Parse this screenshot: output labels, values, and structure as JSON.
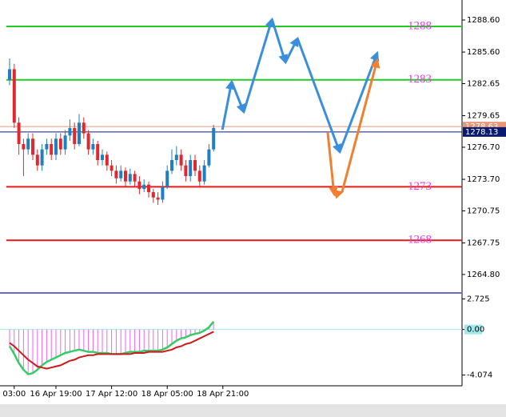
{
  "chart_data": [
    {
      "type": "candlestick",
      "ylim": [
        1263.15,
        1290.47
      ],
      "yticks": [
        {
          "value": 1288.6,
          "label": "1288.60"
        },
        {
          "value": 1285.6,
          "label": "1285.60"
        },
        1282.65,
        1279.65,
        {
          "value": 1276.7,
          "label": "1276.70"
        },
        {
          "value": 1273.7,
          "label": "1273.70"
        },
        1270.75,
        1267.75,
        {
          "value": 1264.8,
          "label": "1264.80"
        }
      ],
      "bull_color": "#1f7fc0",
      "bear_color": "#e0282e",
      "candles": [
        [
          1283,
          1285,
          1282.5,
          1284
        ],
        [
          1284,
          1284.5,
          1278.5,
          1279
        ],
        [
          1279,
          1279.5,
          1276,
          1277
        ],
        [
          1277,
          1277.5,
          1274,
          1276.5
        ],
        [
          1276.5,
          1278,
          1276,
          1277.5
        ],
        [
          1277.5,
          1278,
          1275.5,
          1276
        ],
        [
          1276,
          1276.5,
          1274.5,
          1275
        ],
        [
          1275,
          1277,
          1274.5,
          1276.5
        ],
        [
          1276.5,
          1277.5,
          1276,
          1277
        ],
        [
          1277,
          1277.5,
          1275.5,
          1276
        ],
        [
          1276,
          1278,
          1275.5,
          1277.5
        ],
        [
          1277.5,
          1278,
          1276,
          1276.5
        ],
        [
          1276.5,
          1278.3,
          1276,
          1277.8
        ],
        [
          1277.8,
          1279.3,
          1277.3,
          1278.5
        ],
        [
          1278.5,
          1279,
          1276.5,
          1277
        ],
        [
          1277,
          1279.8,
          1276.8,
          1279
        ],
        [
          1279,
          1279.5,
          1277.5,
          1278
        ],
        [
          1278,
          1278.3,
          1276,
          1276.5
        ],
        [
          1276.5,
          1277.5,
          1276,
          1277
        ],
        [
          1277,
          1277.3,
          1275,
          1275.5
        ],
        [
          1275.5,
          1276.5,
          1275,
          1276
        ],
        [
          1276,
          1276.3,
          1274.5,
          1275
        ],
        [
          1275,
          1275.5,
          1274,
          1274.5
        ],
        [
          1274.5,
          1275,
          1273.3,
          1273.8
        ],
        [
          1273.8,
          1275,
          1273.5,
          1274.5
        ],
        [
          1274.5,
          1274.8,
          1273,
          1273.5
        ],
        [
          1273.5,
          1274.7,
          1273.2,
          1274.2
        ],
        [
          1274.2,
          1274.5,
          1273,
          1273.5
        ],
        [
          1273.5,
          1274,
          1272.3,
          1272.8
        ],
        [
          1272.8,
          1273.7,
          1272.5,
          1273.2
        ],
        [
          1273.2,
          1273.5,
          1272,
          1272.5
        ],
        [
          1272.5,
          1272.8,
          1271.5,
          1272
        ],
        [
          1272,
          1272.5,
          1271.3,
          1271.8
        ],
        [
          1271.8,
          1273.5,
          1271.5,
          1273
        ],
        [
          1273,
          1275,
          1272.8,
          1274.5
        ],
        [
          1274.5,
          1276.5,
          1274.2,
          1275.5
        ],
        [
          1275.5,
          1276.8,
          1275,
          1276
        ],
        [
          1276,
          1276.5,
          1274.5,
          1275
        ],
        [
          1275,
          1275.5,
          1273.5,
          1274
        ],
        [
          1274,
          1276,
          1273.5,
          1275.5
        ],
        [
          1275.5,
          1276,
          1274,
          1274.5
        ],
        [
          1274.5,
          1275,
          1273,
          1273.5
        ],
        [
          1273.5,
          1275.5,
          1273.2,
          1275
        ],
        [
          1275,
          1277,
          1274.8,
          1276.5
        ],
        [
          1276.5,
          1278.8,
          1276.3,
          1278.5
        ]
      ],
      "levels": [
        {
          "value": 1288,
          "label": "1288",
          "color": "#22cc22"
        },
        {
          "value": 1283,
          "label": "1283",
          "color": "#22cc22"
        },
        {
          "value": 1273,
          "label": "1273",
          "color": "#e41b1b"
        },
        {
          "value": 1268,
          "label": "1268",
          "color": "#e41b1b"
        }
      ],
      "level_label_color": "#e040e0",
      "price_lines": [
        {
          "value": 1278.63,
          "color": "#e8967a"
        },
        {
          "value": 1278.13,
          "color": "#0a1a6e"
        }
      ],
      "projections": [
        {
          "color": "#3a8fdc",
          "x": [
            45.9,
            47.9,
            50.5,
            56.6,
            59.5,
            62.1,
            71.2,
            79.3
          ],
          "y": [
            1278.34,
            1282.84,
            1279.99,
            1288.67,
            1284.63,
            1286.88,
            1276.25,
            1285.53
          ]
        },
        {
          "color": "#f08030",
          "x": [
            68.6,
            70,
            71.7,
            79.3
          ],
          "y": [
            1278.12,
            1272.28,
            1272.5,
            1284.86
          ]
        }
      ]
    },
    {
      "type": "macd",
      "ylim": [
        -4.89,
        3.12
      ],
      "yticks": [
        2.725,
        {
          "value": 0,
          "label": "0.00"
        },
        -4.074
      ],
      "histogram": {
        "color": "#ee66ee",
        "line_color": "#33cc66",
        "values": [
          -1.5,
          -2.2,
          -3.0,
          -3.6,
          -4.0,
          -3.9,
          -3.6,
          -3.2,
          -2.9,
          -2.7,
          -2.5,
          -2.3,
          -2.1,
          -2.0,
          -1.9,
          -1.8,
          -1.9,
          -2.0,
          -2.0,
          -2.1,
          -2.1,
          -2.1,
          -2.2,
          -2.2,
          -2.2,
          -2.1,
          -2.0,
          -2.0,
          -2.0,
          -1.9,
          -1.9,
          -1.9,
          -1.9,
          -1.8,
          -1.6,
          -1.3,
          -1.0,
          -0.8,
          -0.7,
          -0.5,
          -0.4,
          -0.3,
          -0.1,
          0.2,
          0.7
        ]
      },
      "signal": {
        "color": "#d01818",
        "values": [
          -1.2,
          -1.5,
          -1.9,
          -2.3,
          -2.7,
          -3.0,
          -3.3,
          -3.4,
          -3.5,
          -3.4,
          -3.3,
          -3.2,
          -3.0,
          -2.8,
          -2.7,
          -2.5,
          -2.4,
          -2.3,
          -2.3,
          -2.2,
          -2.2,
          -2.2,
          -2.2,
          -2.2,
          -2.2,
          -2.2,
          -2.2,
          -2.1,
          -2.1,
          -2.1,
          -2.0,
          -2.0,
          -2.0,
          -2.0,
          -1.9,
          -1.8,
          -1.6,
          -1.5,
          -1.3,
          -1.2,
          -1.0,
          -0.8,
          -0.6,
          -0.4,
          -0.2
        ]
      },
      "xticks": [
        {
          "value": 1,
          "label": "03:00"
        },
        {
          "value": 10,
          "label": "16 Apr 19:00"
        },
        {
          "value": 22,
          "label": "17 Apr 12:00"
        },
        {
          "value": 34,
          "label": "18 Apr 05:00"
        },
        {
          "value": 46,
          "label": "18 Apr 21:00"
        }
      ]
    }
  ]
}
